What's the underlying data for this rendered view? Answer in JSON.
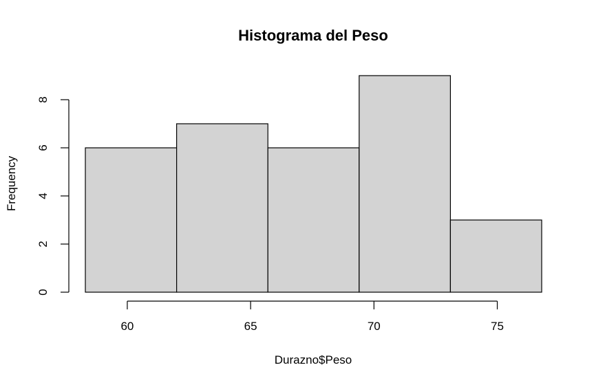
{
  "chart_data": {
    "type": "bar",
    "title": "Histograma del Peso",
    "xlabel": "Durazno$Peso",
    "ylabel": "Frequency",
    "bins": [
      {
        "start": 58.3,
        "end": 62.0,
        "count": 6
      },
      {
        "start": 62.0,
        "end": 65.7,
        "count": 7
      },
      {
        "start": 65.7,
        "end": 69.4,
        "count": 6
      },
      {
        "start": 69.4,
        "end": 73.1,
        "count": 9
      },
      {
        "start": 73.1,
        "end": 76.8,
        "count": 3
      }
    ],
    "xticks": [
      60,
      65,
      70,
      75
    ],
    "yticks": [
      0,
      2,
      4,
      6,
      8
    ],
    "xlim": [
      58.3,
      76.8
    ],
    "ylim": [
      0,
      9
    ],
    "grid": false,
    "bar_color": "#d3d3d3",
    "edge_color": "#000000"
  }
}
